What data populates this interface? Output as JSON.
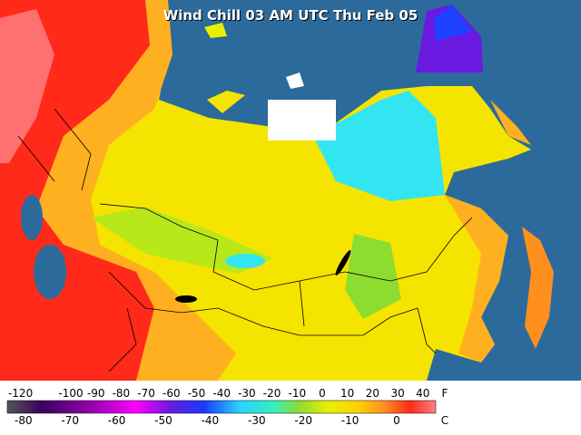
{
  "title": "Wind Chill 03 AM UTC Thu Feb 05",
  "legend": {
    "fahrenheit_ticks": [
      -120,
      -100,
      -90,
      -80,
      -70,
      -60,
      -50,
      -40,
      -30,
      -20,
      -10,
      0,
      10,
      20,
      30,
      40
    ],
    "fahrenheit_unit": "F",
    "celsius_ticks": [
      -80,
      -70,
      -60,
      -50,
      -40,
      -30,
      -20,
      -10,
      0
    ],
    "celsius_unit": "C"
  }
}
